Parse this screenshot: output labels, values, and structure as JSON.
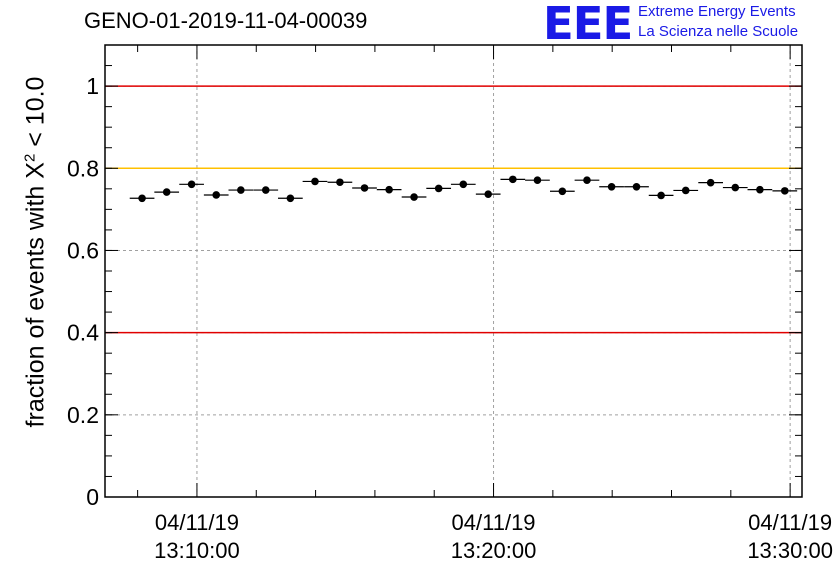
{
  "title": "GENO-01-2019-11-04-00039",
  "logo": {
    "mark": "EEE",
    "line1": "Extreme Energy Events",
    "line2": "La Scienza nelle Scuole"
  },
  "colors": {
    "red_line": "#e00000",
    "yellow_line": "#ffc000",
    "marker": "#000000",
    "grid": "#a0a0a0"
  },
  "chart_data": {
    "type": "scatter",
    "title": "GENO-01-2019-11-04-00039",
    "ylabel_parts": {
      "prefix": "fraction of events with X",
      "sup": "2",
      "suffix": " < 10.0"
    },
    "xlabel": "",
    "ylim": [
      0,
      1.1
    ],
    "xlim_minutes": [
      -3.1,
      20.4
    ],
    "yticks": [
      0,
      0.2,
      0.4,
      0.6,
      0.8,
      1
    ],
    "ytick_labels": [
      "0",
      "0.2",
      "0.4",
      "0.6",
      "0.8",
      "1"
    ],
    "xticks": [
      {
        "minute": 0,
        "date": "04/11/19",
        "time": "13:10:00"
      },
      {
        "minute": 10,
        "date": "04/11/19",
        "time": "13:20:00"
      },
      {
        "minute": 20,
        "date": "04/11/19",
        "time": "13:30:00"
      }
    ],
    "bin_width_minutes": 0.833,
    "series": [
      {
        "name": "fraction",
        "x_minutes": [
          -1.85,
          -1.02,
          -0.18,
          0.65,
          1.48,
          2.32,
          3.15,
          3.98,
          4.82,
          5.65,
          6.48,
          7.32,
          8.15,
          8.98,
          9.82,
          10.65,
          11.48,
          12.32,
          13.15,
          13.98,
          14.82,
          15.65,
          16.48,
          17.32,
          18.15,
          18.98,
          19.82
        ],
        "values": [
          0.727,
          0.742,
          0.761,
          0.735,
          0.747,
          0.747,
          0.727,
          0.768,
          0.766,
          0.752,
          0.748,
          0.73,
          0.751,
          0.761,
          0.737,
          0.773,
          0.771,
          0.744,
          0.771,
          0.755,
          0.755,
          0.734,
          0.746,
          0.765,
          0.753,
          0.748,
          0.745
        ]
      }
    ],
    "reference_lines": [
      {
        "y": 1.0,
        "color": "#e00000"
      },
      {
        "y": 0.8,
        "color": "#ffc000"
      },
      {
        "y": 0.4,
        "color": "#e00000"
      }
    ]
  }
}
